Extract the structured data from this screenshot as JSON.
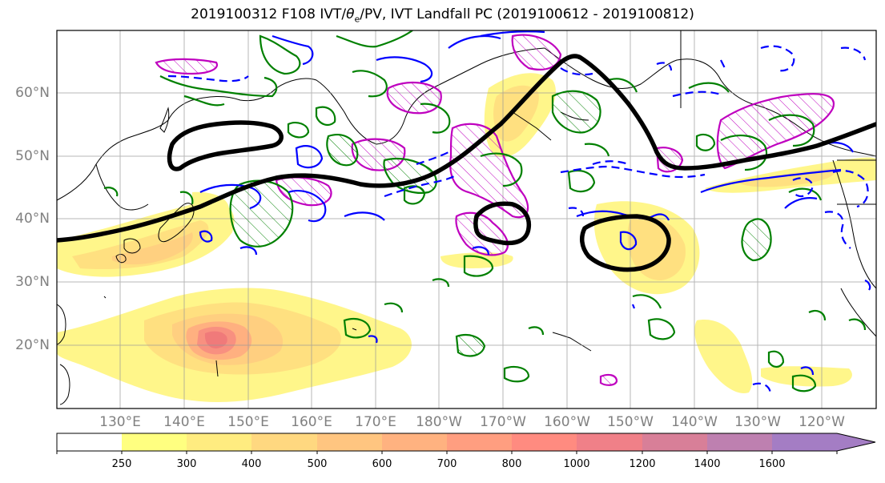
{
  "title_main": "2019100312 F108 IVT/",
  "title_theta": "θ",
  "title_sub": "e",
  "title_rest": "/PV, IVT Landfall PC (2019100612 - 2019100812)",
  "lat_labels": [
    "60°N",
    "50°N",
    "40°N",
    "30°N",
    "20°N"
  ],
  "lon_labels": [
    "130°E",
    "140°E",
    "150°E",
    "160°E",
    "170°E",
    "180°W",
    "170°W",
    "160°W",
    "150°W",
    "140°W",
    "130°W",
    "120°W"
  ],
  "colorbar": {
    "levels": [
      "250",
      "300",
      "400",
      "500",
      "600",
      "700",
      "800",
      "1000",
      "1200",
      "1400",
      "1600"
    ],
    "colors": [
      "#ffffff",
      "#ffff80",
      "#ffec80",
      "#ffd880",
      "#ffc580",
      "#ffb280",
      "#ff9e80",
      "#ff8b80",
      "#f08088",
      "#d87f98",
      "#be80b0",
      "#a47dc4"
    ]
  },
  "colors": {
    "land_outline": "#000000",
    "ivt_low": "#fff68a",
    "ivt_mid": "#ffc580",
    "ivt_high": "#f07a7a",
    "theta_e": "#000000",
    "pv_green": "#008000",
    "pv_blue": "#0000ff",
    "pv_magenta": "#bf00bf"
  }
}
